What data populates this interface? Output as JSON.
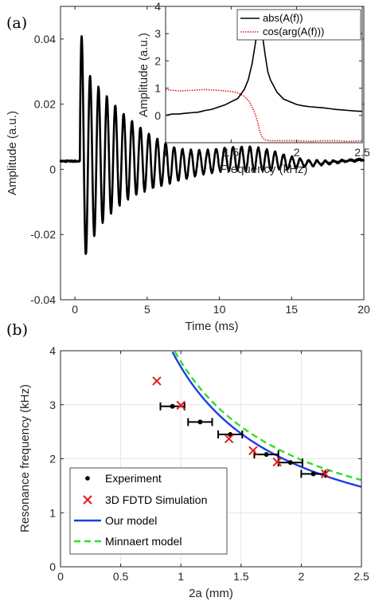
{
  "figure": {
    "panel_a_label": "(a)",
    "panel_b_label": "(b)"
  },
  "chart_data": [
    {
      "id": "main",
      "type": "line",
      "title": "",
      "xlabel": "Time (ms)",
      "ylabel": "Amplitude (a.u.)",
      "xlim": [
        -1,
        20
      ],
      "ylim": [
        -0.04,
        0.05
      ],
      "xticks": [
        0,
        5,
        10,
        15,
        20
      ],
      "xtick_labels": [
        "0",
        "5",
        "10",
        "15",
        "20"
      ],
      "yticks": [
        -0.04,
        -0.02,
        0,
        0.02,
        0.04
      ],
      "ytick_labels": [
        "-0.04",
        "-0.02",
        "0",
        "0.02",
        "0.04"
      ],
      "grid": false,
      "color": "#000000",
      "signal": {
        "t_start": 0.35,
        "baseline": 0.0025,
        "onset_amp": 0.018,
        "beat_freq_khz": 1.6,
        "beat_mod_amp": 0.009,
        "beat_mod_freq_khz": 0.11,
        "beat_decay": 0.38,
        "ring_amp": 0.031,
        "ring_freq_khz": 1.72,
        "ring_decay": 0.27,
        "late_bump_center_ms": 12.5,
        "late_bump_amp": 0.0025,
        "noise": 0.0005
      }
    },
    {
      "id": "inset",
      "type": "line",
      "xlabel": "Frequency (kHz)",
      "ylabel": "Amplitude (a.u.)",
      "xlim": [
        1,
        2.5
      ],
      "ylim": [
        -1,
        4
      ],
      "xticks": [
        1,
        1.5,
        2,
        2.5
      ],
      "xtick_labels": [
        "1",
        "1.5",
        "2",
        "2.5"
      ],
      "yticks": [
        -1,
        0,
        1,
        2,
        3,
        4
      ],
      "ytick_labels": [
        "",
        "0",
        "1",
        "2",
        "3",
        "4"
      ],
      "series": [
        {
          "name": "abs(A(f))",
          "color": "#000000",
          "style": "solid",
          "x": [
            1.0,
            1.05,
            1.1,
            1.15,
            1.2,
            1.25,
            1.3,
            1.35,
            1.4,
            1.45,
            1.5,
            1.55,
            1.6,
            1.63,
            1.66,
            1.68,
            1.7,
            1.72,
            1.74,
            1.76,
            1.78,
            1.8,
            1.85,
            1.9,
            1.95,
            2.0,
            2.05,
            2.1,
            2.15,
            2.2,
            2.25,
            2.3,
            2.35,
            2.4,
            2.45,
            2.5
          ],
          "y": [
            0.0,
            0.05,
            0.05,
            0.08,
            0.1,
            0.12,
            0.18,
            0.22,
            0.3,
            0.38,
            0.5,
            0.62,
            0.95,
            1.3,
            1.9,
            2.5,
            3.1,
            3.3,
            2.9,
            2.2,
            1.6,
            1.3,
            0.85,
            0.6,
            0.5,
            0.4,
            0.35,
            0.32,
            0.3,
            0.28,
            0.25,
            0.22,
            0.2,
            0.18,
            0.16,
            0.15
          ]
        },
        {
          "name": "cos(arg(A(f)))",
          "color": "#e41a1c",
          "style": "dotted",
          "x": [
            1.0,
            1.1,
            1.2,
            1.3,
            1.4,
            1.5,
            1.55,
            1.6,
            1.64,
            1.68,
            1.7,
            1.72,
            1.74,
            1.76,
            1.8,
            1.9,
            2.0,
            2.1,
            2.2,
            2.3,
            2.4,
            2.5
          ],
          "y": [
            0.95,
            0.9,
            0.92,
            0.95,
            0.92,
            0.88,
            0.83,
            0.7,
            0.5,
            0.1,
            -0.2,
            -0.6,
            -0.82,
            -0.9,
            -0.93,
            -0.93,
            -0.93,
            -0.95,
            -0.93,
            -0.93,
            -0.95,
            -0.93
          ]
        }
      ],
      "legend": "top-right"
    },
    {
      "id": "resonance",
      "type": "scatter",
      "xlabel": "2a (mm)",
      "ylabel": "Resonance frequency (kHz)",
      "xlim": [
        0,
        2.5
      ],
      "ylim": [
        0,
        4
      ],
      "xticks": [
        0,
        0.5,
        1,
        1.5,
        2,
        2.5
      ],
      "xtick_labels": [
        "0",
        "0.5",
        "1",
        "1.5",
        "2",
        "2.5"
      ],
      "yticks": [
        0,
        1,
        2,
        3,
        4
      ],
      "ytick_labels": [
        "0",
        "1",
        "2",
        "3",
        "4"
      ],
      "grid": true,
      "legend": "bottom-left",
      "series": [
        {
          "name": "Experiment",
          "color": "#000000",
          "marker": "dot",
          "points": [
            {
              "x": 0.93,
              "y": 2.97,
              "xerr": 0.1
            },
            {
              "x": 1.16,
              "y": 2.68,
              "xerr": 0.1
            },
            {
              "x": 1.41,
              "y": 2.45,
              "xerr": 0.1
            },
            {
              "x": 1.71,
              "y": 2.08,
              "xerr": 0.1
            },
            {
              "x": 1.91,
              "y": 1.93,
              "xerr": 0.1
            },
            {
              "x": 2.1,
              "y": 1.72,
              "xerr": 0.1
            }
          ]
        },
        {
          "name": "3D FDTD Simulation",
          "color": "#e41a1c",
          "marker": "x",
          "points": [
            {
              "x": 0.8,
              "y": 3.44
            },
            {
              "x": 1.0,
              "y": 2.99
            },
            {
              "x": 1.4,
              "y": 2.37
            },
            {
              "x": 1.6,
              "y": 2.15
            },
            {
              "x": 1.8,
              "y": 1.94
            },
            {
              "x": 2.2,
              "y": 1.72
            }
          ]
        },
        {
          "name": "Our model",
          "color": "#1f3fe0",
          "style": "solid",
          "curve_k": 3.7,
          "curve_p": 1.0,
          "x_from": 0.66,
          "x_to": 2.5
        },
        {
          "name": "Minnaert model",
          "color": "#33dd22",
          "style": "dashed",
          "curve_k": 3.8,
          "curve_p": 0.94,
          "x_from": 0.78,
          "x_to": 2.5
        }
      ]
    }
  ]
}
